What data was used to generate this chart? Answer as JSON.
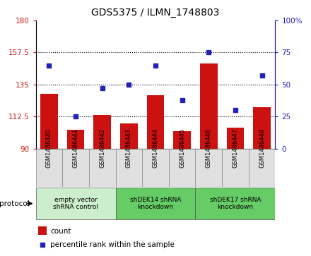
{
  "title": "GDS5375 / ILMN_1748803",
  "samples": [
    "GSM1486440",
    "GSM1486441",
    "GSM1486442",
    "GSM1486443",
    "GSM1486444",
    "GSM1486445",
    "GSM1486446",
    "GSM1486447",
    "GSM1486448"
  ],
  "count_values": [
    128.5,
    103.0,
    113.5,
    107.5,
    127.5,
    102.0,
    150.0,
    104.5,
    119.0
  ],
  "percentile_values": [
    65,
    25,
    47,
    50,
    65,
    38,
    75,
    30,
    57
  ],
  "ylim_left": [
    90,
    180
  ],
  "ylim_right": [
    0,
    100
  ],
  "yticks_left": [
    90,
    112.5,
    135,
    157.5,
    180
  ],
  "yticks_right": [
    0,
    25,
    50,
    75,
    100
  ],
  "bar_color": "#cc1111",
  "dot_color": "#2222bb",
  "protocol_groups": [
    {
      "label": "empty vector\nshRNA control",
      "start": 0,
      "end": 3,
      "color": "#cceecc"
    },
    {
      "label": "shDEK14 shRNA\nknockdown",
      "start": 3,
      "end": 6,
      "color": "#66cc66"
    },
    {
      "label": "shDEK17 shRNA\nknockdown",
      "start": 6,
      "end": 9,
      "color": "#66cc66"
    }
  ],
  "legend_count_label": "count",
  "legend_percentile_label": "percentile rank within the sample",
  "protocol_label": "protocol"
}
